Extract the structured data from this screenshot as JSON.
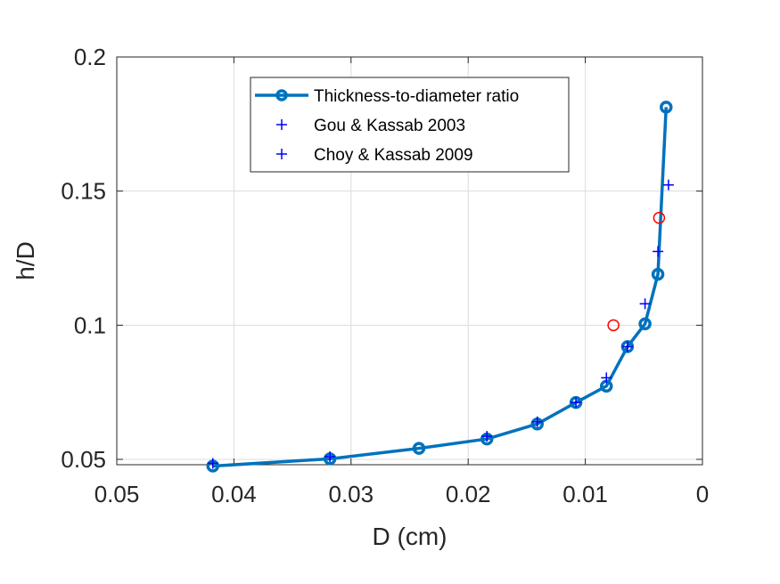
{
  "chart_data": {
    "type": "line",
    "xlabel": "D (cm)",
    "ylabel": "h/D",
    "xlim": [
      0.05,
      0
    ],
    "ylim": [
      0.048,
      0.2
    ],
    "x_reversed": true,
    "grid": true,
    "legend_placement": "top-center",
    "xticks": [
      0.05,
      0.04,
      0.03,
      0.02,
      0.01,
      0
    ],
    "xtick_labels": [
      "0.05",
      "0.04",
      "0.03",
      "0.02",
      "0.01",
      "0"
    ],
    "yticks": [
      0.05,
      0.1,
      0.15,
      0.2
    ],
    "ytick_labels": [
      "0.05",
      "0.1",
      "0.15",
      "0.2"
    ],
    "series": [
      {
        "name": "Thickness-to-diameter ratio",
        "marker": "circle-line",
        "color": "#0072BD",
        "x": [
          0.0418,
          0.0318,
          0.0242,
          0.0184,
          0.0141,
          0.0108,
          0.0082,
          0.0064,
          0.0049,
          0.0038,
          0.0031
        ],
        "y": [
          0.0475,
          0.0502,
          0.0541,
          0.0576,
          0.0632,
          0.0712,
          0.0773,
          0.092,
          0.1005,
          0.119,
          0.1813
        ]
      },
      {
        "name": "Gou & Kassab 2003",
        "marker": "plus",
        "color": "#0000FF",
        "x": [
          0.0418,
          0.0318,
          0.0184,
          0.0141,
          0.0108,
          0.0082,
          0.0064,
          0.0049,
          0.0038,
          0.0029
        ],
        "y": [
          0.0485,
          0.051,
          0.0586,
          0.064,
          0.0712,
          0.0804,
          0.092,
          0.108,
          0.1275,
          0.1523
        ]
      },
      {
        "name": "Choy & Kassab 2009",
        "marker": "plus",
        "color": "#0000FF",
        "x": [],
        "y": []
      },
      {
        "name": "",
        "marker": "circle",
        "color": "#FF0000",
        "x": [
          0.0076,
          0.0037
        ],
        "y": [
          0.1,
          0.14
        ]
      }
    ]
  }
}
